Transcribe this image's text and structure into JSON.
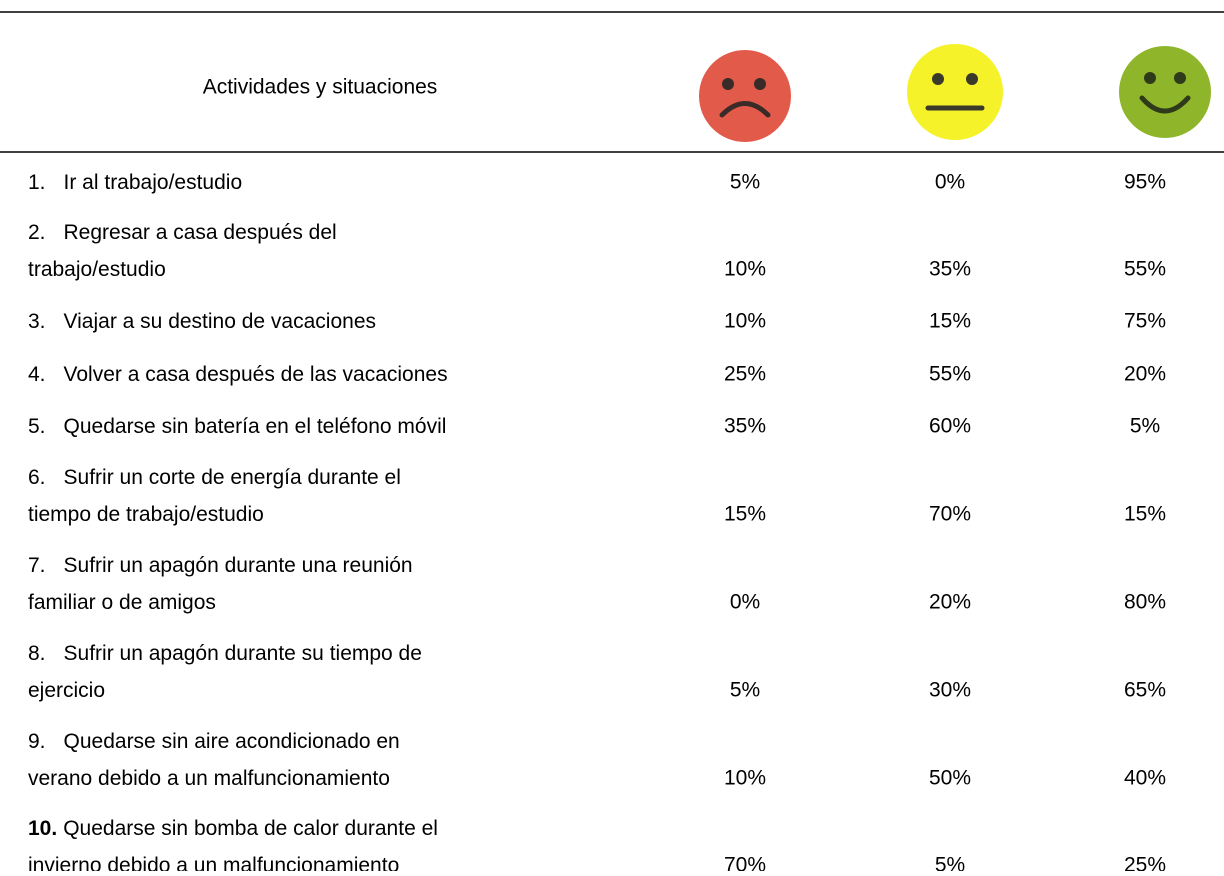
{
  "header": {
    "title": "Actividades y situaciones"
  },
  "table": {
    "rows": [
      {
        "number": "1.",
        "lines": [
          "Ir al trabajo/estudio"
        ],
        "values": [
          "5%",
          "0%",
          "95%"
        ]
      },
      {
        "number": "2.",
        "lines": [
          "Regresar a casa después del",
          "trabajo/estudio"
        ],
        "values": [
          "10%",
          "35%",
          "55%"
        ]
      },
      {
        "number": "3.",
        "lines": [
          "Viajar a su destino de vacaciones"
        ],
        "values": [
          "10%",
          "15%",
          "75%"
        ]
      },
      {
        "number": "4.",
        "lines": [
          "Volver a casa después de las vacaciones"
        ],
        "values": [
          "25%",
          "55%",
          "20%"
        ]
      },
      {
        "number": "5.",
        "lines": [
          "Quedarse sin batería en el teléfono móvil"
        ],
        "values": [
          "35%",
          "60%",
          "5%"
        ]
      },
      {
        "number": "6.",
        "lines": [
          "Sufrir un corte de energía durante el",
          "tiempo de trabajo/estudio"
        ],
        "values": [
          "15%",
          "70%",
          "15%"
        ]
      },
      {
        "number": "7.",
        "lines": [
          "Sufrir un apagón durante una reunión",
          "familiar o de amigos"
        ],
        "values": [
          "0%",
          "20%",
          "80%"
        ]
      },
      {
        "number": "8.",
        "lines": [
          "Sufrir un apagón durante su tiempo de",
          "ejercicio"
        ],
        "values": [
          "5%",
          "30%",
          "65%"
        ]
      },
      {
        "number": "9.",
        "lines": [
          "Quedarse sin aire acondicionado en",
          "verano debido a un malfuncionamiento"
        ],
        "values": [
          "10%",
          "50%",
          "40%"
        ]
      },
      {
        "number": "10.",
        "lines": [
          "Quedarse sin bomba de calor durante el",
          "invierno debido a un malfuncionamiento"
        ],
        "values": [
          "70%",
          "5%",
          "25%"
        ]
      }
    ]
  }
}
